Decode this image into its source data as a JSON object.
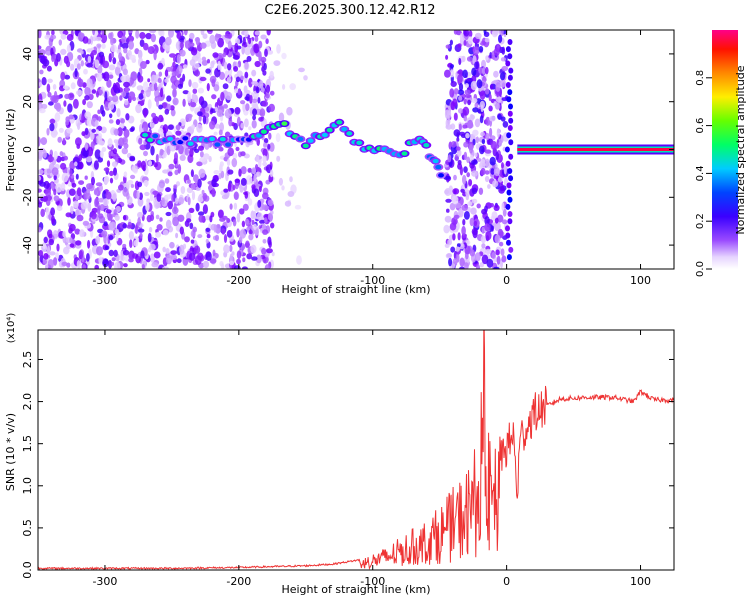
{
  "title": "C2E6.2025.300.12.42.R12",
  "chart_data": [
    {
      "type": "heatmap",
      "panel": "top",
      "xlabel": "Height of straight line (km)",
      "ylabel": "Frequency (Hz)",
      "xlim": [
        -350,
        125
      ],
      "ylim": [
        -50,
        50
      ],
      "xticks": [
        -300,
        -200,
        -100,
        0,
        100
      ],
      "yticks": [
        -40,
        -20,
        0,
        20,
        40
      ],
      "colorbar": {
        "label": "Normalized spectral amplitude",
        "range": [
          0,
          1
        ],
        "ticks": [
          0.0,
          0.2,
          0.4,
          0.6,
          0.8
        ],
        "tick_labels": [
          "0.0",
          "0.2",
          "0.4",
          "0.6",
          "0.8"
        ],
        "colormap": [
          "#ffffff",
          "#d8b8ff",
          "#7a00ff",
          "#0000ff",
          "#00ccff",
          "#00ff66",
          "#ccff00",
          "#ffaa00",
          "#ff0000",
          "#ff0088"
        ]
      },
      "noise_regions": [
        {
          "x": [
            -350,
            -175
          ],
          "density": 0.55,
          "level": 0.18
        },
        {
          "x": [
            -175,
            -150
          ],
          "density": 0.05,
          "level": 0.08
        },
        {
          "x": [
            -45,
            0
          ],
          "density": 0.65,
          "level": 0.2
        }
      ],
      "signal_track": [
        {
          "x": -270,
          "f": 5,
          "amp": 0.45
        },
        {
          "x": -240,
          "f": 4,
          "amp": 0.4
        },
        {
          "x": -220,
          "f": 3,
          "amp": 0.45
        },
        {
          "x": -200,
          "f": 3,
          "amp": 0.35
        },
        {
          "x": -170,
          "f": 11,
          "amp": 0.55
        },
        {
          "x": -150,
          "f": 3,
          "amp": 0.45
        },
        {
          "x": -125,
          "f": 10,
          "amp": 0.5
        },
        {
          "x": -110,
          "f": 2,
          "amp": 0.5
        },
        {
          "x": -95,
          "f": 0,
          "amp": 0.5
        },
        {
          "x": -80,
          "f": -2,
          "amp": 0.45
        },
        {
          "x": -65,
          "f": 5,
          "amp": 0.5
        },
        {
          "x": -55,
          "f": -4,
          "amp": 0.4
        },
        {
          "x": -47,
          "f": -12,
          "amp": 0.35
        }
      ],
      "steady_carrier": {
        "x": [
          8,
          125
        ],
        "f": 0,
        "amp": 0.95
      }
    },
    {
      "type": "line",
      "panel": "bottom",
      "xlabel": "Height of straight line (km)",
      "ylabel": "SNR (10 * v/v)",
      "y_multiplier": "(x10⁴)",
      "xlim": [
        -350,
        125
      ],
      "ylim": [
        0,
        2.85
      ],
      "xticks": [
        -300,
        -200,
        -100,
        0,
        100
      ],
      "yticks": [
        0.0,
        0.5,
        1.0,
        1.5,
        2.0,
        2.5
      ],
      "ytick_labels": [
        "0.0",
        "0.5",
        "1.0",
        "1.5",
        "2.0",
        "2.5"
      ],
      "color": "#ee3333",
      "series": [
        {
          "x": [
            -350,
            -300,
            -250,
            -200,
            -150,
            -130,
            -110,
            -100,
            -90,
            -80,
            -70,
            -60,
            -50,
            -40,
            -30,
            -25,
            -20,
            -17,
            -15,
            -10,
            -5,
            0,
            5,
            8,
            10,
            15,
            20,
            30,
            40,
            60,
            80,
            95,
            100,
            110,
            125
          ],
          "y": [
            0.02,
            0.02,
            0.02,
            0.03,
            0.05,
            0.07,
            0.12,
            0.18,
            0.25,
            0.35,
            0.45,
            0.55,
            0.7,
            0.9,
            1.1,
            1.3,
            1.55,
            2.8,
            1.6,
            1.3,
            1.35,
            1.45,
            1.6,
            0.9,
            1.55,
            1.7,
            1.85,
            1.95,
            2.03,
            2.05,
            2.05,
            2.0,
            2.12,
            2.02,
            2.02
          ]
        }
      ]
    }
  ]
}
